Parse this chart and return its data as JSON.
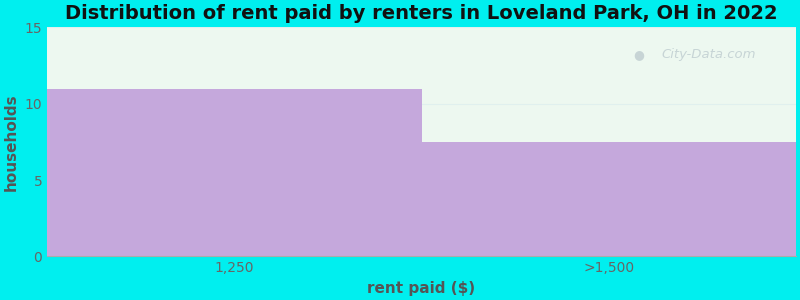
{
  "title": "Distribution of rent paid by renters in Loveland Park, OH in 2022",
  "categories": [
    "1,250",
    ">1,500"
  ],
  "values": [
    11,
    7.5
  ],
  "bar_color": "#c5a8dc",
  "background_color": "#00efef",
  "plot_bg_color": "#edf8f0",
  "xlabel": "rent paid ($)",
  "ylabel": "households",
  "ylim": [
    0,
    15
  ],
  "yticks": [
    0,
    5,
    10,
    15
  ],
  "title_fontsize": 14,
  "axis_label_fontsize": 11,
  "tick_fontsize": 10,
  "watermark_text": "City-Data.com",
  "watermark_color": "#a8b8c0",
  "watermark_alpha": 0.55,
  "grid_color": "#ddeeee",
  "grid_alpha": 0.8
}
